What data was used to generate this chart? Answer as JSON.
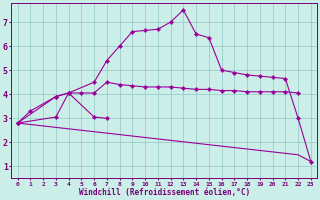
{
  "xlabel": "Windchill (Refroidissement éolien,°C)",
  "bg_color": "#cceee8",
  "grid_color": "#99cccc",
  "line_color": "#990099",
  "xlim": [
    -0.5,
    23.5
  ],
  "ylim": [
    0.5,
    7.8
  ],
  "line1_x": [
    0,
    1,
    3,
    4,
    5,
    6,
    7,
    8,
    9,
    10,
    11,
    12,
    13,
    14,
    15,
    16,
    17,
    18,
    19,
    20,
    21,
    22
  ],
  "line1_y": [
    2.8,
    3.3,
    3.9,
    4.05,
    4.05,
    4.05,
    4.5,
    4.4,
    4.35,
    4.3,
    4.3,
    4.3,
    4.25,
    4.2,
    4.2,
    4.15,
    4.15,
    4.1,
    4.1,
    4.1,
    4.1,
    4.05
  ],
  "line2_x": [
    0,
    3,
    4,
    6,
    7
  ],
  "line2_y": [
    2.8,
    3.05,
    4.05,
    3.05,
    3.0
  ],
  "line3_x": [
    0,
    3,
    4,
    6,
    7,
    8,
    9,
    10,
    11,
    12,
    13,
    14,
    15,
    16,
    17,
    18,
    19,
    20,
    21,
    22,
    23
  ],
  "line3_y": [
    2.8,
    3.9,
    4.05,
    4.5,
    5.4,
    6.0,
    6.6,
    6.65,
    6.7,
    7.0,
    7.5,
    6.5,
    6.35,
    5.0,
    4.9,
    4.8,
    4.75,
    4.7,
    4.65,
    3.0,
    1.2
  ],
  "line4_x": [
    0,
    1,
    2,
    3,
    4,
    5,
    6,
    7,
    8,
    9,
    10,
    11,
    12,
    13,
    14,
    15,
    16,
    17,
    18,
    19,
    20,
    21,
    22,
    23
  ],
  "line4_y": [
    2.8,
    2.74,
    2.68,
    2.62,
    2.56,
    2.5,
    2.44,
    2.38,
    2.32,
    2.26,
    2.2,
    2.14,
    2.08,
    2.02,
    1.96,
    1.9,
    1.84,
    1.78,
    1.72,
    1.66,
    1.6,
    1.54,
    1.48,
    1.2
  ]
}
